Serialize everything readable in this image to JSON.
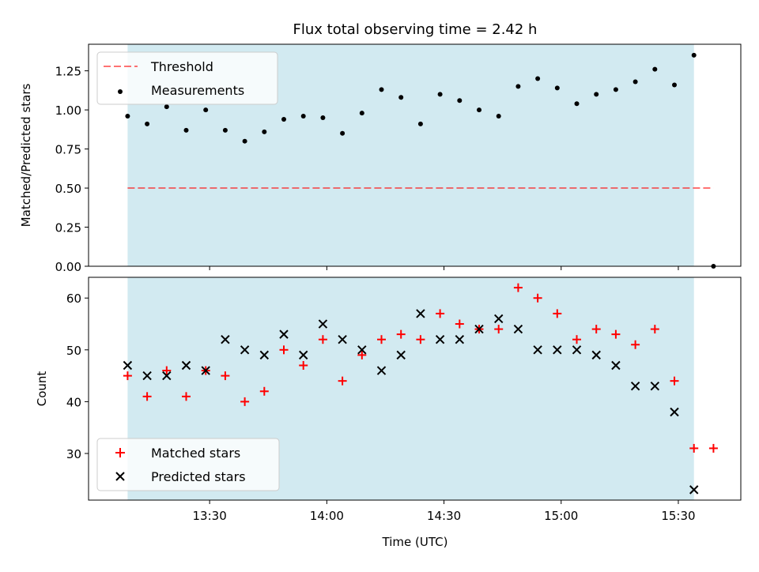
{
  "title": "Flux total observing time = 2.42 h",
  "colors": {
    "shade": "#add8e6",
    "threshold": "#ff0000",
    "measurement": "#000000",
    "matched": "#ff0000",
    "predicted": "#000000"
  },
  "chart_data": [
    {
      "type": "scatter",
      "panel": "top",
      "title": "Flux total observing time = 2.42 h",
      "xlabel": "",
      "ylabel": "Matched/Predicted stars",
      "ylim": [
        0,
        1.42
      ],
      "yticks": [
        0.0,
        0.25,
        0.5,
        0.75,
        1.0,
        1.25
      ],
      "yticklabels": [
        "0.00",
        "0.25",
        "0.50",
        "0.75",
        "1.00",
        "1.25"
      ],
      "legend": [
        "Threshold",
        "Measurements"
      ],
      "legend_placement": "top-left",
      "threshold": 0.5,
      "shaded_interval": [
        "13:09",
        "15:34"
      ],
      "x": [
        "13:09",
        "13:14",
        "13:19",
        "13:24",
        "13:29",
        "13:34",
        "13:39",
        "13:44",
        "13:49",
        "13:54",
        "13:59",
        "14:04",
        "14:09",
        "14:14",
        "14:19",
        "14:24",
        "14:29",
        "14:34",
        "14:39",
        "14:44",
        "14:49",
        "14:54",
        "14:59",
        "15:04",
        "15:09",
        "15:14",
        "15:19",
        "15:24",
        "15:29",
        "15:34",
        "15:39"
      ],
      "series": [
        {
          "name": "Measurements",
          "values": [
            0.96,
            0.91,
            1.02,
            0.87,
            1.0,
            0.87,
            0.8,
            0.86,
            0.94,
            0.96,
            0.95,
            0.85,
            0.98,
            1.13,
            1.08,
            0.91,
            1.1,
            1.06,
            1.0,
            0.96,
            1.15,
            1.2,
            1.14,
            1.04,
            1.1,
            1.13,
            1.18,
            1.26,
            1.16,
            1.35,
            0.0
          ]
        }
      ]
    },
    {
      "type": "scatter",
      "panel": "bottom",
      "xlabel": "Time (UTC)",
      "ylabel": "Count",
      "ylim": [
        21,
        64
      ],
      "yticks": [
        30,
        40,
        50,
        60
      ],
      "yticklabels": [
        "30",
        "40",
        "50",
        "60"
      ],
      "xticks": [
        "13:30",
        "14:00",
        "14:30",
        "15:00",
        "15:30"
      ],
      "legend": [
        "Matched stars",
        "Predicted stars"
      ],
      "legend_placement": "bottom-left",
      "shaded_interval": [
        "13:09",
        "15:34"
      ],
      "x": [
        "13:09",
        "13:14",
        "13:19",
        "13:24",
        "13:29",
        "13:34",
        "13:39",
        "13:44",
        "13:49",
        "13:54",
        "13:59",
        "14:04",
        "14:09",
        "14:14",
        "14:19",
        "14:24",
        "14:29",
        "14:34",
        "14:39",
        "14:44",
        "14:49",
        "14:54",
        "14:59",
        "15:04",
        "15:09",
        "15:14",
        "15:19",
        "15:24",
        "15:29",
        "15:34",
        "15:39"
      ],
      "series": [
        {
          "name": "Matched stars",
          "marker": "plus",
          "values": [
            45,
            41,
            46,
            41,
            46,
            45,
            40,
            42,
            50,
            47,
            52,
            44,
            49,
            52,
            53,
            52,
            57,
            55,
            54,
            54,
            62,
            60,
            57,
            52,
            54,
            53,
            51,
            54,
            44,
            31,
            31
          ]
        },
        {
          "name": "Predicted stars",
          "marker": "x",
          "values": [
            47,
            45,
            45,
            47,
            46,
            52,
            50,
            49,
            53,
            49,
            55,
            52,
            50,
            46,
            49,
            57,
            52,
            52,
            54,
            56,
            54,
            50,
            50,
            50,
            49,
            47,
            43,
            43,
            38,
            23,
            null
          ]
        }
      ]
    }
  ]
}
